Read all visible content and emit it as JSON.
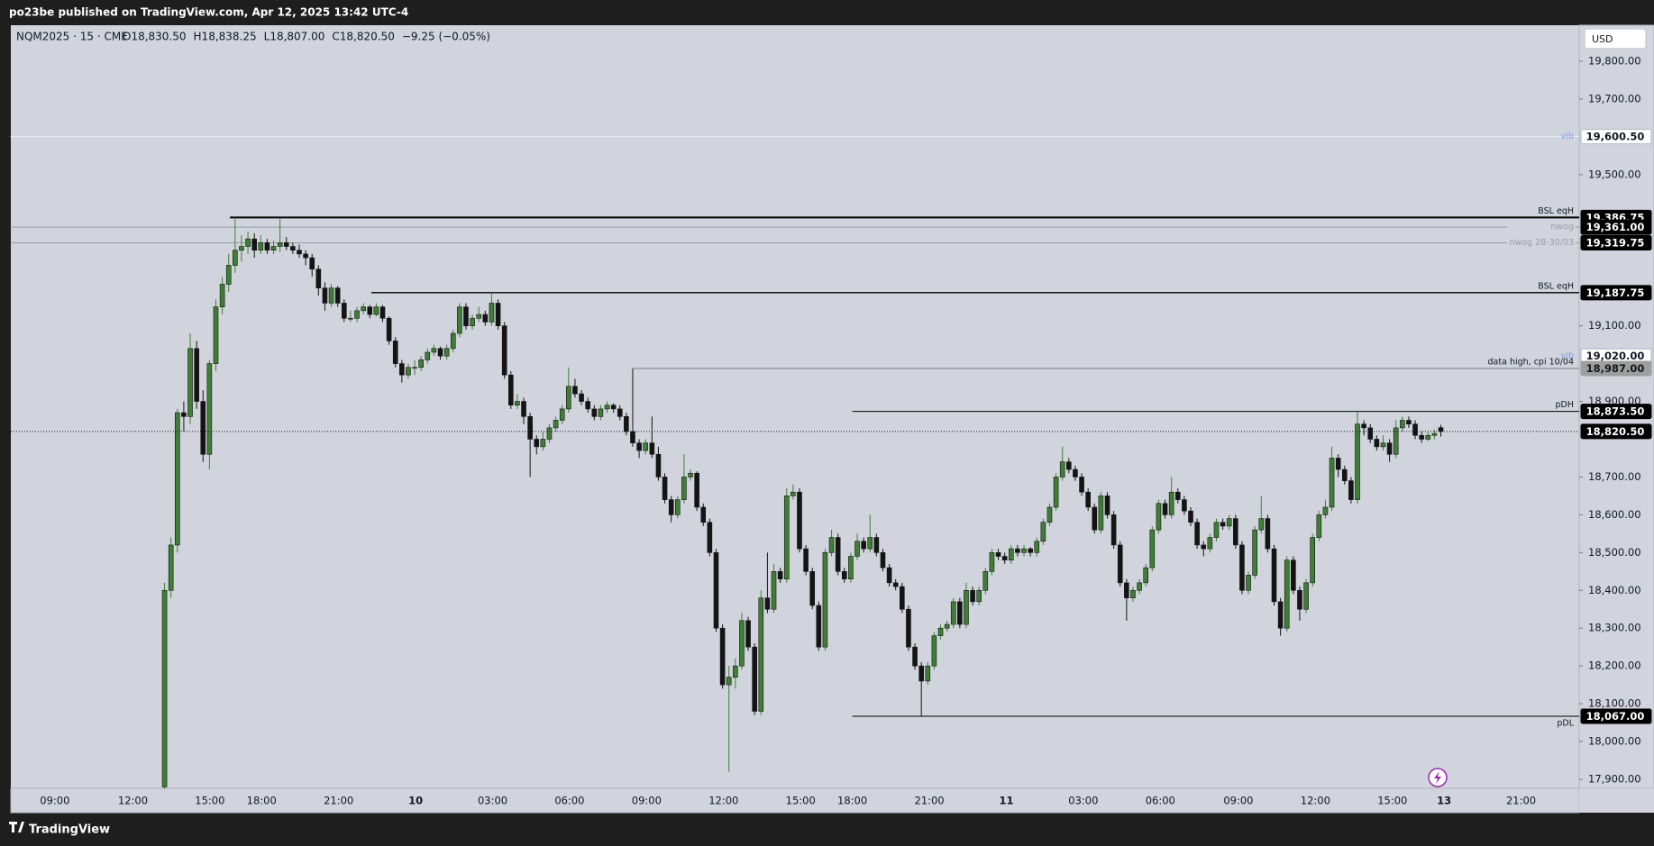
{
  "header": {
    "text": "po23be published on TradingView.com, Apr 12, 2025 13:42 UTC-4"
  },
  "footer": {
    "brand": "TradingView"
  },
  "chart_data": {
    "type": "candlestick",
    "symbol": "NQM2025 · 15 · CME",
    "ohlc": [
      "O18,830.50",
      "H18,838.25",
      "L18,807.00",
      "C18,820.50",
      "−9.25 (−0.05%)"
    ],
    "currency": "USD",
    "up_color": "#3f7f35",
    "down_color": "#141414",
    "ylim": [
      17900,
      19800
    ],
    "yticks": [
      {
        "value": 19800,
        "label": "19,800.00"
      },
      {
        "value": 19700,
        "label": "19,700.00"
      },
      {
        "value": 19500,
        "label": "19,500.00"
      },
      {
        "value": 19100,
        "label": "19,100.00"
      },
      {
        "value": 18900,
        "label": "18,900.00"
      },
      {
        "value": 18700,
        "label": "18,700.00"
      },
      {
        "value": 18600,
        "label": "18,600.00"
      },
      {
        "value": 18500,
        "label": "18,500.00"
      },
      {
        "value": 18400,
        "label": "18,400.00"
      },
      {
        "value": 18300,
        "label": "18,300.00"
      },
      {
        "value": 18200,
        "label": "18,200.00"
      },
      {
        "value": 18100,
        "label": "18,100.00"
      },
      {
        "value": 18000,
        "label": "18,000.00"
      },
      {
        "value": 17900,
        "label": "17,900.00"
      }
    ],
    "xtick_labels": [
      "09:00",
      "12:00",
      "15:00",
      "18:00",
      "21:00",
      "10",
      "03:00",
      "06:00",
      "09:00",
      "12:00",
      "15:00",
      "18:00",
      "21:00",
      "11",
      "03:00",
      "06:00",
      "09:00",
      "12:00",
      "15:00",
      "13",
      "21:00"
    ],
    "last_price": {
      "value": 18820.5,
      "label": "18,820.50"
    },
    "levels": [
      {
        "name": "vib",
        "value": 19600.5,
        "label": "19,600.50",
        "color": "#e6eaf3",
        "tag": "#ffffff"
      },
      {
        "name": "BSL eqH",
        "value": 19386.75,
        "label": "19,386.75",
        "color": "#000000",
        "tag": "#000000"
      },
      {
        "name": "nwog",
        "value": 19361,
        "label": "19,361.00",
        "color": "#9a9da6",
        "tag": "#000000"
      },
      {
        "name": "nwog 28-30/03",
        "value": 19319.75,
        "label": "19,319.75",
        "color": "#9a9da6",
        "tag": "#000000"
      },
      {
        "name": "BSL eqH",
        "value": 19187.75,
        "label": "19,187.75",
        "color": "#000000",
        "tag": "#000000"
      },
      {
        "name": "vib",
        "value": 19020,
        "label": "19,020.00",
        "color": "#d1d4dc",
        "tag": "#ffffff"
      },
      {
        "name": "data high, cpi 10/04",
        "value": 18987,
        "label": "18,987.00",
        "color": "#7a7d86",
        "tag": "#9e9e9e"
      },
      {
        "name": "pDH",
        "value": 18873.5,
        "label": "18,873.50",
        "color": "#000000",
        "tag": "#000000"
      },
      {
        "name": "pDL",
        "value": 18067,
        "label": "18,067.00",
        "color": "#000000",
        "tag": "#000000"
      }
    ],
    "candles": [
      [
        17880,
        18420,
        17875,
        18400
      ],
      [
        18400,
        18540,
        18380,
        18520
      ],
      [
        18520,
        18880,
        18500,
        18870
      ],
      [
        18870,
        18900,
        18820,
        18860
      ],
      [
        18860,
        19080,
        18840,
        19040
      ],
      [
        19040,
        19060,
        18880,
        18900
      ],
      [
        18900,
        18930,
        18740,
        18760
      ],
      [
        18760,
        19010,
        18720,
        19000
      ],
      [
        19000,
        19170,
        18980,
        19150
      ],
      [
        19150,
        19230,
        19130,
        19210
      ],
      [
        19210,
        19290,
        19190,
        19260
      ],
      [
        19260,
        19386.75,
        19240,
        19300
      ],
      [
        19300,
        19340,
        19270,
        19310
      ],
      [
        19310,
        19350,
        19290,
        19330
      ],
      [
        19330,
        19345,
        19280,
        19300
      ],
      [
        19300,
        19340,
        19290,
        19320
      ],
      [
        19320,
        19330,
        19290,
        19300
      ],
      [
        19300,
        19325,
        19290,
        19310
      ],
      [
        19310,
        19386,
        19295,
        19320
      ],
      [
        19320,
        19335,
        19300,
        19310
      ],
      [
        19310,
        19320,
        19290,
        19300
      ],
      [
        19300,
        19315,
        19280,
        19290
      ],
      [
        19290,
        19300,
        19260,
        19280
      ],
      [
        19280,
        19290,
        19230,
        19250
      ],
      [
        19250,
        19260,
        19180,
        19200
      ],
      [
        19200,
        19215,
        19140,
        19160
      ],
      [
        19160,
        19210,
        19150,
        19200
      ],
      [
        19200,
        19205,
        19150,
        19160
      ],
      [
        19160,
        19170,
        19110,
        19120
      ],
      [
        19120,
        19140,
        19110,
        19120
      ],
      [
        19120,
        19150,
        19110,
        19140
      ],
      [
        19140,
        19160,
        19130,
        19150
      ],
      [
        19150,
        19155,
        19120,
        19130
      ],
      [
        19130,
        19160,
        19125,
        19150
      ],
      [
        19150,
        19155,
        19110,
        19120
      ],
      [
        19120,
        19125,
        19050,
        19060
      ],
      [
        19060,
        19070,
        18990,
        19000
      ],
      [
        19000,
        19010,
        18950,
        18970
      ],
      [
        18970,
        19000,
        18960,
        18990
      ],
      [
        18990,
        19010,
        18970,
        18990
      ],
      [
        18990,
        19020,
        18980,
        19010
      ],
      [
        19010,
        19040,
        19000,
        19030
      ],
      [
        19030,
        19050,
        19020,
        19040
      ],
      [
        19040,
        19045,
        19010,
        19020
      ],
      [
        19020,
        19050,
        19010,
        19040
      ],
      [
        19040,
        19090,
        19030,
        19080
      ],
      [
        19080,
        19160,
        19070,
        19150
      ],
      [
        19150,
        19160,
        19090,
        19100
      ],
      [
        19100,
        19130,
        19090,
        19120
      ],
      [
        19120,
        19150,
        19110,
        19130
      ],
      [
        19130,
        19140,
        19100,
        19110
      ],
      [
        19110,
        19187.75,
        19100,
        19160
      ],
      [
        19160,
        19170,
        19090,
        19100
      ],
      [
        19100,
        19110,
        18960,
        18970
      ],
      [
        18970,
        18980,
        18880,
        18890
      ],
      [
        18890,
        18920,
        18880,
        18900
      ],
      [
        18900,
        18910,
        18840,
        18860
      ],
      [
        18860,
        18870,
        18700,
        18800
      ],
      [
        18800,
        18810,
        18760,
        18780
      ],
      [
        18780,
        18820,
        18770,
        18800
      ],
      [
        18800,
        18840,
        18790,
        18830
      ],
      [
        18830,
        18860,
        18820,
        18850
      ],
      [
        18850,
        18890,
        18840,
        18880
      ],
      [
        18880,
        18990,
        18870,
        18940
      ],
      [
        18940,
        18960,
        18910,
        18920
      ],
      [
        18920,
        18930,
        18890,
        18900
      ],
      [
        18900,
        18910,
        18870,
        18880
      ],
      [
        18880,
        18890,
        18850,
        18860
      ],
      [
        18860,
        18890,
        18850,
        18880
      ],
      [
        18880,
        18900,
        18870,
        18890
      ],
      [
        18890,
        18895,
        18870,
        18880
      ],
      [
        18880,
        18890,
        18850,
        18860
      ],
      [
        18860,
        18870,
        18810,
        18820
      ],
      [
        18820,
        18987,
        18780,
        18790
      ],
      [
        18790,
        18800,
        18750,
        18770
      ],
      [
        18770,
        18800,
        18760,
        18790
      ],
      [
        18790,
        18860,
        18750,
        18760
      ],
      [
        18760,
        18780,
        18690,
        18700
      ],
      [
        18700,
        18710,
        18630,
        18640
      ],
      [
        18640,
        18650,
        18580,
        18600
      ],
      [
        18600,
        18650,
        18590,
        18640
      ],
      [
        18640,
        18760,
        18630,
        18700
      ],
      [
        18700,
        18720,
        18690,
        18710
      ],
      [
        18710,
        18715,
        18610,
        18620
      ],
      [
        18620,
        18630,
        18570,
        18580
      ],
      [
        18580,
        18590,
        18490,
        18500
      ],
      [
        18500,
        18510,
        18290,
        18300
      ],
      [
        18300,
        18310,
        18140,
        18150
      ],
      [
        18150,
        18200,
        17920,
        18170
      ],
      [
        18170,
        18220,
        18140,
        18200
      ],
      [
        18200,
        18340,
        18190,
        18320
      ],
      [
        18320,
        18330,
        18240,
        18250
      ],
      [
        18250,
        18260,
        18070,
        18080
      ],
      [
        18080,
        18400,
        18070,
        18380
      ],
      [
        18380,
        18500,
        18340,
        18350
      ],
      [
        18350,
        18470,
        18340,
        18450
      ],
      [
        18450,
        18460,
        18420,
        18430
      ],
      [
        18430,
        18670,
        18420,
        18650
      ],
      [
        18650,
        18680,
        18640,
        18660
      ],
      [
        18660,
        18670,
        18500,
        18510
      ],
      [
        18510,
        18520,
        18440,
        18450
      ],
      [
        18450,
        18460,
        18350,
        18360
      ],
      [
        18360,
        18370,
        18240,
        18250
      ],
      [
        18250,
        18510,
        18240,
        18500
      ],
      [
        18500,
        18560,
        18490,
        18540
      ],
      [
        18540,
        18550,
        18440,
        18450
      ],
      [
        18450,
        18460,
        18420,
        18430
      ],
      [
        18430,
        18500,
        18420,
        18490
      ],
      [
        18490,
        18550,
        18480,
        18530
      ],
      [
        18530,
        18540,
        18500,
        18510
      ],
      [
        18510,
        18600,
        18500,
        18540
      ],
      [
        18540,
        18550,
        18490,
        18500
      ],
      [
        18500,
        18510,
        18450,
        18460
      ],
      [
        18460,
        18470,
        18410,
        18420
      ],
      [
        18420,
        18430,
        18400,
        18410
      ],
      [
        18410,
        18420,
        18340,
        18350
      ],
      [
        18350,
        18360,
        18240,
        18250
      ],
      [
        18250,
        18260,
        18190,
        18200
      ],
      [
        18200,
        18210,
        18067,
        18160
      ],
      [
        18160,
        18210,
        18150,
        18200
      ],
      [
        18200,
        18290,
        18190,
        18280
      ],
      [
        18280,
        18310,
        18270,
        18300
      ],
      [
        18300,
        18320,
        18290,
        18310
      ],
      [
        18310,
        18380,
        18300,
        18370
      ],
      [
        18370,
        18380,
        18300,
        18310
      ],
      [
        18310,
        18420,
        18300,
        18400
      ],
      [
        18400,
        18410,
        18360,
        18370
      ],
      [
        18370,
        18410,
        18360,
        18400
      ],
      [
        18400,
        18460,
        18390,
        18450
      ],
      [
        18450,
        18510,
        18440,
        18500
      ],
      [
        18500,
        18510,
        18480,
        18490
      ],
      [
        18490,
        18500,
        18470,
        18480
      ],
      [
        18480,
        18520,
        18470,
        18510
      ],
      [
        18510,
        18520,
        18490,
        18500
      ],
      [
        18500,
        18520,
        18490,
        18510
      ],
      [
        18510,
        18515,
        18490,
        18500
      ],
      [
        18500,
        18540,
        18490,
        18530
      ],
      [
        18530,
        18590,
        18520,
        18580
      ],
      [
        18580,
        18630,
        18570,
        18620
      ],
      [
        18620,
        18710,
        18610,
        18700
      ],
      [
        18700,
        18780,
        18690,
        18740
      ],
      [
        18740,
        18750,
        18710,
        18720
      ],
      [
        18720,
        18730,
        18690,
        18700
      ],
      [
        18700,
        18710,
        18650,
        18660
      ],
      [
        18660,
        18670,
        18610,
        18620
      ],
      [
        18620,
        18630,
        18550,
        18560
      ],
      [
        18560,
        18660,
        18550,
        18650
      ],
      [
        18650,
        18660,
        18590,
        18600
      ],
      [
        18600,
        18610,
        18510,
        18520
      ],
      [
        18520,
        18530,
        18410,
        18420
      ],
      [
        18420,
        18430,
        18320,
        18380
      ],
      [
        18380,
        18410,
        18370,
        18400
      ],
      [
        18400,
        18430,
        18390,
        18420
      ],
      [
        18420,
        18470,
        18410,
        18460
      ],
      [
        18460,
        18570,
        18450,
        18560
      ],
      [
        18560,
        18640,
        18550,
        18630
      ],
      [
        18630,
        18640,
        18590,
        18600
      ],
      [
        18600,
        18700,
        18590,
        18660
      ],
      [
        18660,
        18670,
        18630,
        18640
      ],
      [
        18640,
        18650,
        18600,
        18610
      ],
      [
        18610,
        18620,
        18570,
        18580
      ],
      [
        18580,
        18590,
        18510,
        18520
      ],
      [
        18520,
        18530,
        18490,
        18510
      ],
      [
        18510,
        18550,
        18500,
        18540
      ],
      [
        18540,
        18590,
        18530,
        18580
      ],
      [
        18580,
        18590,
        18560,
        18570
      ],
      [
        18570,
        18600,
        18560,
        18590
      ],
      [
        18590,
        18600,
        18510,
        18520
      ],
      [
        18520,
        18530,
        18390,
        18400
      ],
      [
        18400,
        18450,
        18390,
        18440
      ],
      [
        18440,
        18570,
        18430,
        18560
      ],
      [
        18560,
        18650,
        18550,
        18590
      ],
      [
        18590,
        18600,
        18500,
        18510
      ],
      [
        18510,
        18520,
        18360,
        18370
      ],
      [
        18370,
        18380,
        18280,
        18300
      ],
      [
        18300,
        18490,
        18290,
        18480
      ],
      [
        18480,
        18490,
        18390,
        18400
      ],
      [
        18400,
        18410,
        18320,
        18350
      ],
      [
        18350,
        18430,
        18340,
        18420
      ],
      [
        18420,
        18550,
        18410,
        18540
      ],
      [
        18540,
        18610,
        18530,
        18600
      ],
      [
        18600,
        18640,
        18590,
        18620
      ],
      [
        18620,
        18780,
        18610,
        18750
      ],
      [
        18750,
        18760,
        18700,
        18720
      ],
      [
        18720,
        18730,
        18680,
        18690
      ],
      [
        18690,
        18700,
        18630,
        18640
      ],
      [
        18640,
        18873.5,
        18630,
        18840
      ],
      [
        18840,
        18850,
        18810,
        18830
      ],
      [
        18830,
        18840,
        18790,
        18800
      ],
      [
        18800,
        18810,
        18770,
        18780
      ],
      [
        18780,
        18810,
        18770,
        18790
      ],
      [
        18790,
        18800,
        18740,
        18760
      ],
      [
        18760,
        18850,
        18750,
        18830
      ],
      [
        18830,
        18860,
        18820,
        18850
      ],
      [
        18850,
        18860,
        18830,
        18840
      ],
      [
        18840,
        18850,
        18800,
        18810
      ],
      [
        18810,
        18820,
        18790,
        18800
      ],
      [
        18800,
        18820,
        18795,
        18810
      ],
      [
        18810,
        18825,
        18800,
        18815
      ],
      [
        18830.5,
        18838.25,
        18807,
        18820.5
      ]
    ]
  }
}
